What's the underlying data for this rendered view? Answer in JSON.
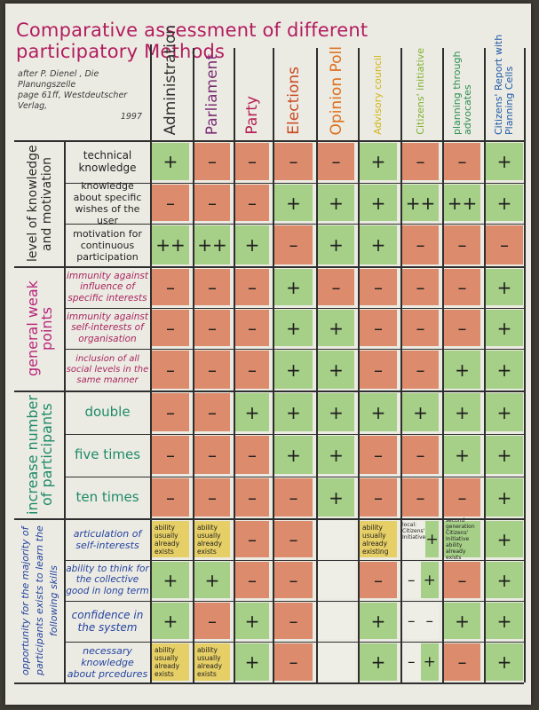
{
  "title": "Comparative assessment of different participatory Methods",
  "source": {
    "line1": "after P. Dienel , Die Planungszelle",
    "line2": "page 61ff, Westdeutscher Verlag,",
    "year": "1997"
  },
  "colors": {
    "positive": "#a6cf87",
    "negative": "#dc8b6c",
    "neutral_note": "#e6cf66",
    "blank": "#efeee6",
    "title": "#b21c5f"
  },
  "columns": [
    {
      "label": "Administration",
      "color": "#2f2f2f"
    },
    {
      "label": "Parliament",
      "color": "#7a2e74"
    },
    {
      "label": "Party",
      "color": "#b51f56"
    },
    {
      "label": "Elections",
      "color": "#c84a22"
    },
    {
      "label": "Opinion Poll",
      "color": "#dd6f1c"
    },
    {
      "label": "Advisory council",
      "color": "#d0b414"
    },
    {
      "label": "Citizens' initiative",
      "color": "#7fb02f"
    },
    {
      "label": "planning through advocates",
      "color": "#2b8f53"
    },
    {
      "label": "Citizens' Report with Planning Cells",
      "color": "#1f5aa8"
    }
  ],
  "groups": [
    {
      "label": "level of knowledge and motivation",
      "color": "#2b2b2b",
      "rows": [
        {
          "label": "technical knowledge",
          "color": "#222222",
          "cells": [
            {
              "v": "+",
              "c": "pos"
            },
            {
              "v": "–",
              "c": "neg"
            },
            {
              "v": "–",
              "c": "neg"
            },
            {
              "v": "–",
              "c": "neg"
            },
            {
              "v": "–",
              "c": "neg"
            },
            {
              "v": "+",
              "c": "pos"
            },
            {
              "v": "–",
              "c": "neg"
            },
            {
              "v": "–",
              "c": "neg"
            },
            {
              "v": "+",
              "c": "pos"
            }
          ]
        },
        {
          "label": "knowledge about specific wishes of the user",
          "color": "#222222",
          "cells": [
            {
              "v": "–",
              "c": "neg"
            },
            {
              "v": "–",
              "c": "neg"
            },
            {
              "v": "–",
              "c": "neg"
            },
            {
              "v": "+",
              "c": "pos"
            },
            {
              "v": "+",
              "c": "pos"
            },
            {
              "v": "+",
              "c": "pos"
            },
            {
              "v": "++",
              "c": "pos"
            },
            {
              "v": "++",
              "c": "pos"
            },
            {
              "v": "+",
              "c": "pos"
            }
          ]
        },
        {
          "label": "motivation for continuous participation",
          "color": "#222222",
          "cells": [
            {
              "v": "++",
              "c": "pos"
            },
            {
              "v": "++",
              "c": "pos"
            },
            {
              "v": "+",
              "c": "pos"
            },
            {
              "v": "–",
              "c": "neg"
            },
            {
              "v": "+",
              "c": "pos"
            },
            {
              "v": "+",
              "c": "pos"
            },
            {
              "v": "–",
              "c": "neg"
            },
            {
              "v": "–",
              "c": "neg"
            },
            {
              "v": "–",
              "c": "neg"
            }
          ]
        }
      ]
    },
    {
      "label": "general weak points",
      "color": "#b8267a",
      "rows": [
        {
          "label": "immunity against influence of specific interests",
          "color": "#a8255f",
          "cells": [
            {
              "v": "–",
              "c": "neg"
            },
            {
              "v": "–",
              "c": "neg"
            },
            {
              "v": "–",
              "c": "neg"
            },
            {
              "v": "+",
              "c": "pos"
            },
            {
              "v": "–",
              "c": "neg"
            },
            {
              "v": "–",
              "c": "neg"
            },
            {
              "v": "–",
              "c": "neg"
            },
            {
              "v": "–",
              "c": "neg"
            },
            {
              "v": "+",
              "c": "pos"
            }
          ]
        },
        {
          "label": "immunity against self-interests of organisation",
          "color": "#a8255f",
          "cells": [
            {
              "v": "–",
              "c": "neg"
            },
            {
              "v": "–",
              "c": "neg"
            },
            {
              "v": "–",
              "c": "neg"
            },
            {
              "v": "+",
              "c": "pos"
            },
            {
              "v": "+",
              "c": "pos"
            },
            {
              "v": "–",
              "c": "neg"
            },
            {
              "v": "–",
              "c": "neg"
            },
            {
              "v": "–",
              "c": "neg"
            },
            {
              "v": "+",
              "c": "pos"
            }
          ]
        },
        {
          "label": "inclusion of all social levels in the same manner",
          "color": "#a8255f",
          "cells": [
            {
              "v": "–",
              "c": "neg"
            },
            {
              "v": "–",
              "c": "neg"
            },
            {
              "v": "–",
              "c": "neg"
            },
            {
              "v": "+",
              "c": "pos"
            },
            {
              "v": "+",
              "c": "pos"
            },
            {
              "v": "–",
              "c": "neg"
            },
            {
              "v": "–",
              "c": "neg"
            },
            {
              "v": "+",
              "c": "pos"
            },
            {
              "v": "+",
              "c": "pos"
            }
          ]
        }
      ]
    },
    {
      "label": "increase number of participants",
      "color": "#1e8a6a",
      "rows": [
        {
          "label": "double",
          "color": "#1e8a6a",
          "cells": [
            {
              "v": "–",
              "c": "neg"
            },
            {
              "v": "–",
              "c": "neg"
            },
            {
              "v": "+",
              "c": "pos"
            },
            {
              "v": "+",
              "c": "pos"
            },
            {
              "v": "+",
              "c": "pos"
            },
            {
              "v": "+",
              "c": "pos"
            },
            {
              "v": "+",
              "c": "pos"
            },
            {
              "v": "+",
              "c": "pos"
            },
            {
              "v": "+",
              "c": "pos"
            }
          ]
        },
        {
          "label": "five times",
          "color": "#1e8a6a",
          "cells": [
            {
              "v": "–",
              "c": "neg"
            },
            {
              "v": "–",
              "c": "neg"
            },
            {
              "v": "–",
              "c": "neg"
            },
            {
              "v": "+",
              "c": "pos"
            },
            {
              "v": "+",
              "c": "pos"
            },
            {
              "v": "–",
              "c": "neg"
            },
            {
              "v": "–",
              "c": "neg"
            },
            {
              "v": "+",
              "c": "pos"
            },
            {
              "v": "+",
              "c": "pos"
            }
          ]
        },
        {
          "label": "ten times",
          "color": "#1e8a6a",
          "cells": [
            {
              "v": "–",
              "c": "neg"
            },
            {
              "v": "–",
              "c": "neg"
            },
            {
              "v": "–",
              "c": "neg"
            },
            {
              "v": "–",
              "c": "neg"
            },
            {
              "v": "+",
              "c": "pos"
            },
            {
              "v": "–",
              "c": "neg"
            },
            {
              "v": "–",
              "c": "neg"
            },
            {
              "v": "–",
              "c": "neg"
            },
            {
              "v": "+",
              "c": "pos"
            }
          ]
        }
      ]
    },
    {
      "label": "opportunity for the majority of participants exists to learn the following skills",
      "color": "#2343a0",
      "rows": [
        {
          "label": "articulation of self-interests",
          "color": "#2343a0",
          "cells": [
            {
              "v": "ability usually already exists",
              "c": "yel",
              "t": "note"
            },
            {
              "v": "ability usually already exists",
              "c": "yel",
              "t": "note"
            },
            {
              "v": "–",
              "c": "neg"
            },
            {
              "v": "–",
              "c": "neg"
            },
            {
              "v": "",
              "c": "blank"
            },
            {
              "v": "ability usually already existing",
              "c": "yel",
              "t": "note"
            },
            {
              "v": "local: Citizens' Initiative",
              "v2": "+",
              "c": "split1"
            },
            {
              "v": "second generation Citizens' Initiative ability already exists",
              "c": "pos",
              "t": "micro"
            },
            {
              "v": "+",
              "c": "pos"
            }
          ]
        },
        {
          "label": "ability to think for the collective good in long term",
          "color": "#2343a0",
          "cells": [
            {
              "v": "+",
              "c": "pos"
            },
            {
              "v": "+",
              "c": "pos"
            },
            {
              "v": "–",
              "c": "neg"
            },
            {
              "v": "–",
              "c": "neg"
            },
            {
              "v": "",
              "c": "blank"
            },
            {
              "v": "–",
              "c": "neg"
            },
            {
              "v": "–",
              "v2": "+",
              "c": "split2"
            },
            {
              "v": "–",
              "c": "neg"
            },
            {
              "v": "+",
              "c": "pos"
            }
          ]
        },
        {
          "label": "confidence in the system",
          "color": "#2343a0",
          "cells": [
            {
              "v": "+",
              "c": "pos"
            },
            {
              "v": "–",
              "c": "neg"
            },
            {
              "v": "+",
              "c": "pos"
            },
            {
              "v": "–",
              "c": "neg"
            },
            {
              "v": "",
              "c": "blank"
            },
            {
              "v": "+",
              "c": "pos"
            },
            {
              "v": "–",
              "v2": "–",
              "c": "split3"
            },
            {
              "v": "+",
              "c": "pos"
            },
            {
              "v": "+",
              "c": "pos"
            }
          ]
        },
        {
          "label": "necessary knowledge about prcedures",
          "color": "#2343a0",
          "cells": [
            {
              "v": "ability usually already exists",
              "c": "yel",
              "t": "note"
            },
            {
              "v": "ability usually already exists",
              "c": "yel",
              "t": "note"
            },
            {
              "v": "+",
              "c": "pos"
            },
            {
              "v": "–",
              "c": "neg"
            },
            {
              "v": "",
              "c": "blank"
            },
            {
              "v": "+",
              "c": "pos"
            },
            {
              "v": "–",
              "v2": "+",
              "c": "split2"
            },
            {
              "v": "–",
              "c": "neg"
            },
            {
              "v": "+",
              "c": "pos"
            }
          ]
        }
      ]
    }
  ]
}
